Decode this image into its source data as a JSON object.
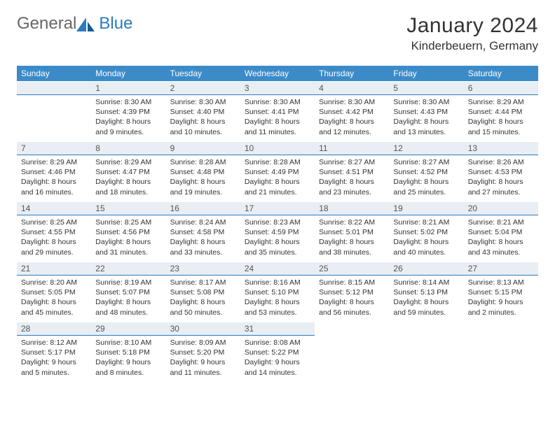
{
  "brand": {
    "general": "General",
    "blue": "Blue"
  },
  "title": "January 2024",
  "location": "Kinderbeuern, Germany",
  "colors": {
    "header_bg": "#3b8bc9",
    "header_text": "#ffffff",
    "daynum_bg": "#e8eef3",
    "daynum_border": "#2b7bbf",
    "body_text": "#333333",
    "logo_gray": "#666666",
    "logo_blue": "#2b7bbf"
  },
  "weekdays": [
    "Sunday",
    "Monday",
    "Tuesday",
    "Wednesday",
    "Thursday",
    "Friday",
    "Saturday"
  ],
  "weeks": [
    [
      {
        "n": "",
        "sr": "",
        "ss": "",
        "dl": ""
      },
      {
        "n": "1",
        "sr": "Sunrise: 8:30 AM",
        "ss": "Sunset: 4:39 PM",
        "dl": "Daylight: 8 hours and 9 minutes."
      },
      {
        "n": "2",
        "sr": "Sunrise: 8:30 AM",
        "ss": "Sunset: 4:40 PM",
        "dl": "Daylight: 8 hours and 10 minutes."
      },
      {
        "n": "3",
        "sr": "Sunrise: 8:30 AM",
        "ss": "Sunset: 4:41 PM",
        "dl": "Daylight: 8 hours and 11 minutes."
      },
      {
        "n": "4",
        "sr": "Sunrise: 8:30 AM",
        "ss": "Sunset: 4:42 PM",
        "dl": "Daylight: 8 hours and 12 minutes."
      },
      {
        "n": "5",
        "sr": "Sunrise: 8:30 AM",
        "ss": "Sunset: 4:43 PM",
        "dl": "Daylight: 8 hours and 13 minutes."
      },
      {
        "n": "6",
        "sr": "Sunrise: 8:29 AM",
        "ss": "Sunset: 4:44 PM",
        "dl": "Daylight: 8 hours and 15 minutes."
      }
    ],
    [
      {
        "n": "7",
        "sr": "Sunrise: 8:29 AM",
        "ss": "Sunset: 4:46 PM",
        "dl": "Daylight: 8 hours and 16 minutes."
      },
      {
        "n": "8",
        "sr": "Sunrise: 8:29 AM",
        "ss": "Sunset: 4:47 PM",
        "dl": "Daylight: 8 hours and 18 minutes."
      },
      {
        "n": "9",
        "sr": "Sunrise: 8:28 AM",
        "ss": "Sunset: 4:48 PM",
        "dl": "Daylight: 8 hours and 19 minutes."
      },
      {
        "n": "10",
        "sr": "Sunrise: 8:28 AM",
        "ss": "Sunset: 4:49 PM",
        "dl": "Daylight: 8 hours and 21 minutes."
      },
      {
        "n": "11",
        "sr": "Sunrise: 8:27 AM",
        "ss": "Sunset: 4:51 PM",
        "dl": "Daylight: 8 hours and 23 minutes."
      },
      {
        "n": "12",
        "sr": "Sunrise: 8:27 AM",
        "ss": "Sunset: 4:52 PM",
        "dl": "Daylight: 8 hours and 25 minutes."
      },
      {
        "n": "13",
        "sr": "Sunrise: 8:26 AM",
        "ss": "Sunset: 4:53 PM",
        "dl": "Daylight: 8 hours and 27 minutes."
      }
    ],
    [
      {
        "n": "14",
        "sr": "Sunrise: 8:25 AM",
        "ss": "Sunset: 4:55 PM",
        "dl": "Daylight: 8 hours and 29 minutes."
      },
      {
        "n": "15",
        "sr": "Sunrise: 8:25 AM",
        "ss": "Sunset: 4:56 PM",
        "dl": "Daylight: 8 hours and 31 minutes."
      },
      {
        "n": "16",
        "sr": "Sunrise: 8:24 AM",
        "ss": "Sunset: 4:58 PM",
        "dl": "Daylight: 8 hours and 33 minutes."
      },
      {
        "n": "17",
        "sr": "Sunrise: 8:23 AM",
        "ss": "Sunset: 4:59 PM",
        "dl": "Daylight: 8 hours and 35 minutes."
      },
      {
        "n": "18",
        "sr": "Sunrise: 8:22 AM",
        "ss": "Sunset: 5:01 PM",
        "dl": "Daylight: 8 hours and 38 minutes."
      },
      {
        "n": "19",
        "sr": "Sunrise: 8:21 AM",
        "ss": "Sunset: 5:02 PM",
        "dl": "Daylight: 8 hours and 40 minutes."
      },
      {
        "n": "20",
        "sr": "Sunrise: 8:21 AM",
        "ss": "Sunset: 5:04 PM",
        "dl": "Daylight: 8 hours and 43 minutes."
      }
    ],
    [
      {
        "n": "21",
        "sr": "Sunrise: 8:20 AM",
        "ss": "Sunset: 5:05 PM",
        "dl": "Daylight: 8 hours and 45 minutes."
      },
      {
        "n": "22",
        "sr": "Sunrise: 8:19 AM",
        "ss": "Sunset: 5:07 PM",
        "dl": "Daylight: 8 hours and 48 minutes."
      },
      {
        "n": "23",
        "sr": "Sunrise: 8:17 AM",
        "ss": "Sunset: 5:08 PM",
        "dl": "Daylight: 8 hours and 50 minutes."
      },
      {
        "n": "24",
        "sr": "Sunrise: 8:16 AM",
        "ss": "Sunset: 5:10 PM",
        "dl": "Daylight: 8 hours and 53 minutes."
      },
      {
        "n": "25",
        "sr": "Sunrise: 8:15 AM",
        "ss": "Sunset: 5:12 PM",
        "dl": "Daylight: 8 hours and 56 minutes."
      },
      {
        "n": "26",
        "sr": "Sunrise: 8:14 AM",
        "ss": "Sunset: 5:13 PM",
        "dl": "Daylight: 8 hours and 59 minutes."
      },
      {
        "n": "27",
        "sr": "Sunrise: 8:13 AM",
        "ss": "Sunset: 5:15 PM",
        "dl": "Daylight: 9 hours and 2 minutes."
      }
    ],
    [
      {
        "n": "28",
        "sr": "Sunrise: 8:12 AM",
        "ss": "Sunset: 5:17 PM",
        "dl": "Daylight: 9 hours and 5 minutes."
      },
      {
        "n": "29",
        "sr": "Sunrise: 8:10 AM",
        "ss": "Sunset: 5:18 PM",
        "dl": "Daylight: 9 hours and 8 minutes."
      },
      {
        "n": "30",
        "sr": "Sunrise: 8:09 AM",
        "ss": "Sunset: 5:20 PM",
        "dl": "Daylight: 9 hours and 11 minutes."
      },
      {
        "n": "31",
        "sr": "Sunrise: 8:08 AM",
        "ss": "Sunset: 5:22 PM",
        "dl": "Daylight: 9 hours and 14 minutes."
      },
      {
        "n": "",
        "sr": "",
        "ss": "",
        "dl": ""
      },
      {
        "n": "",
        "sr": "",
        "ss": "",
        "dl": ""
      },
      {
        "n": "",
        "sr": "",
        "ss": "",
        "dl": ""
      }
    ]
  ]
}
